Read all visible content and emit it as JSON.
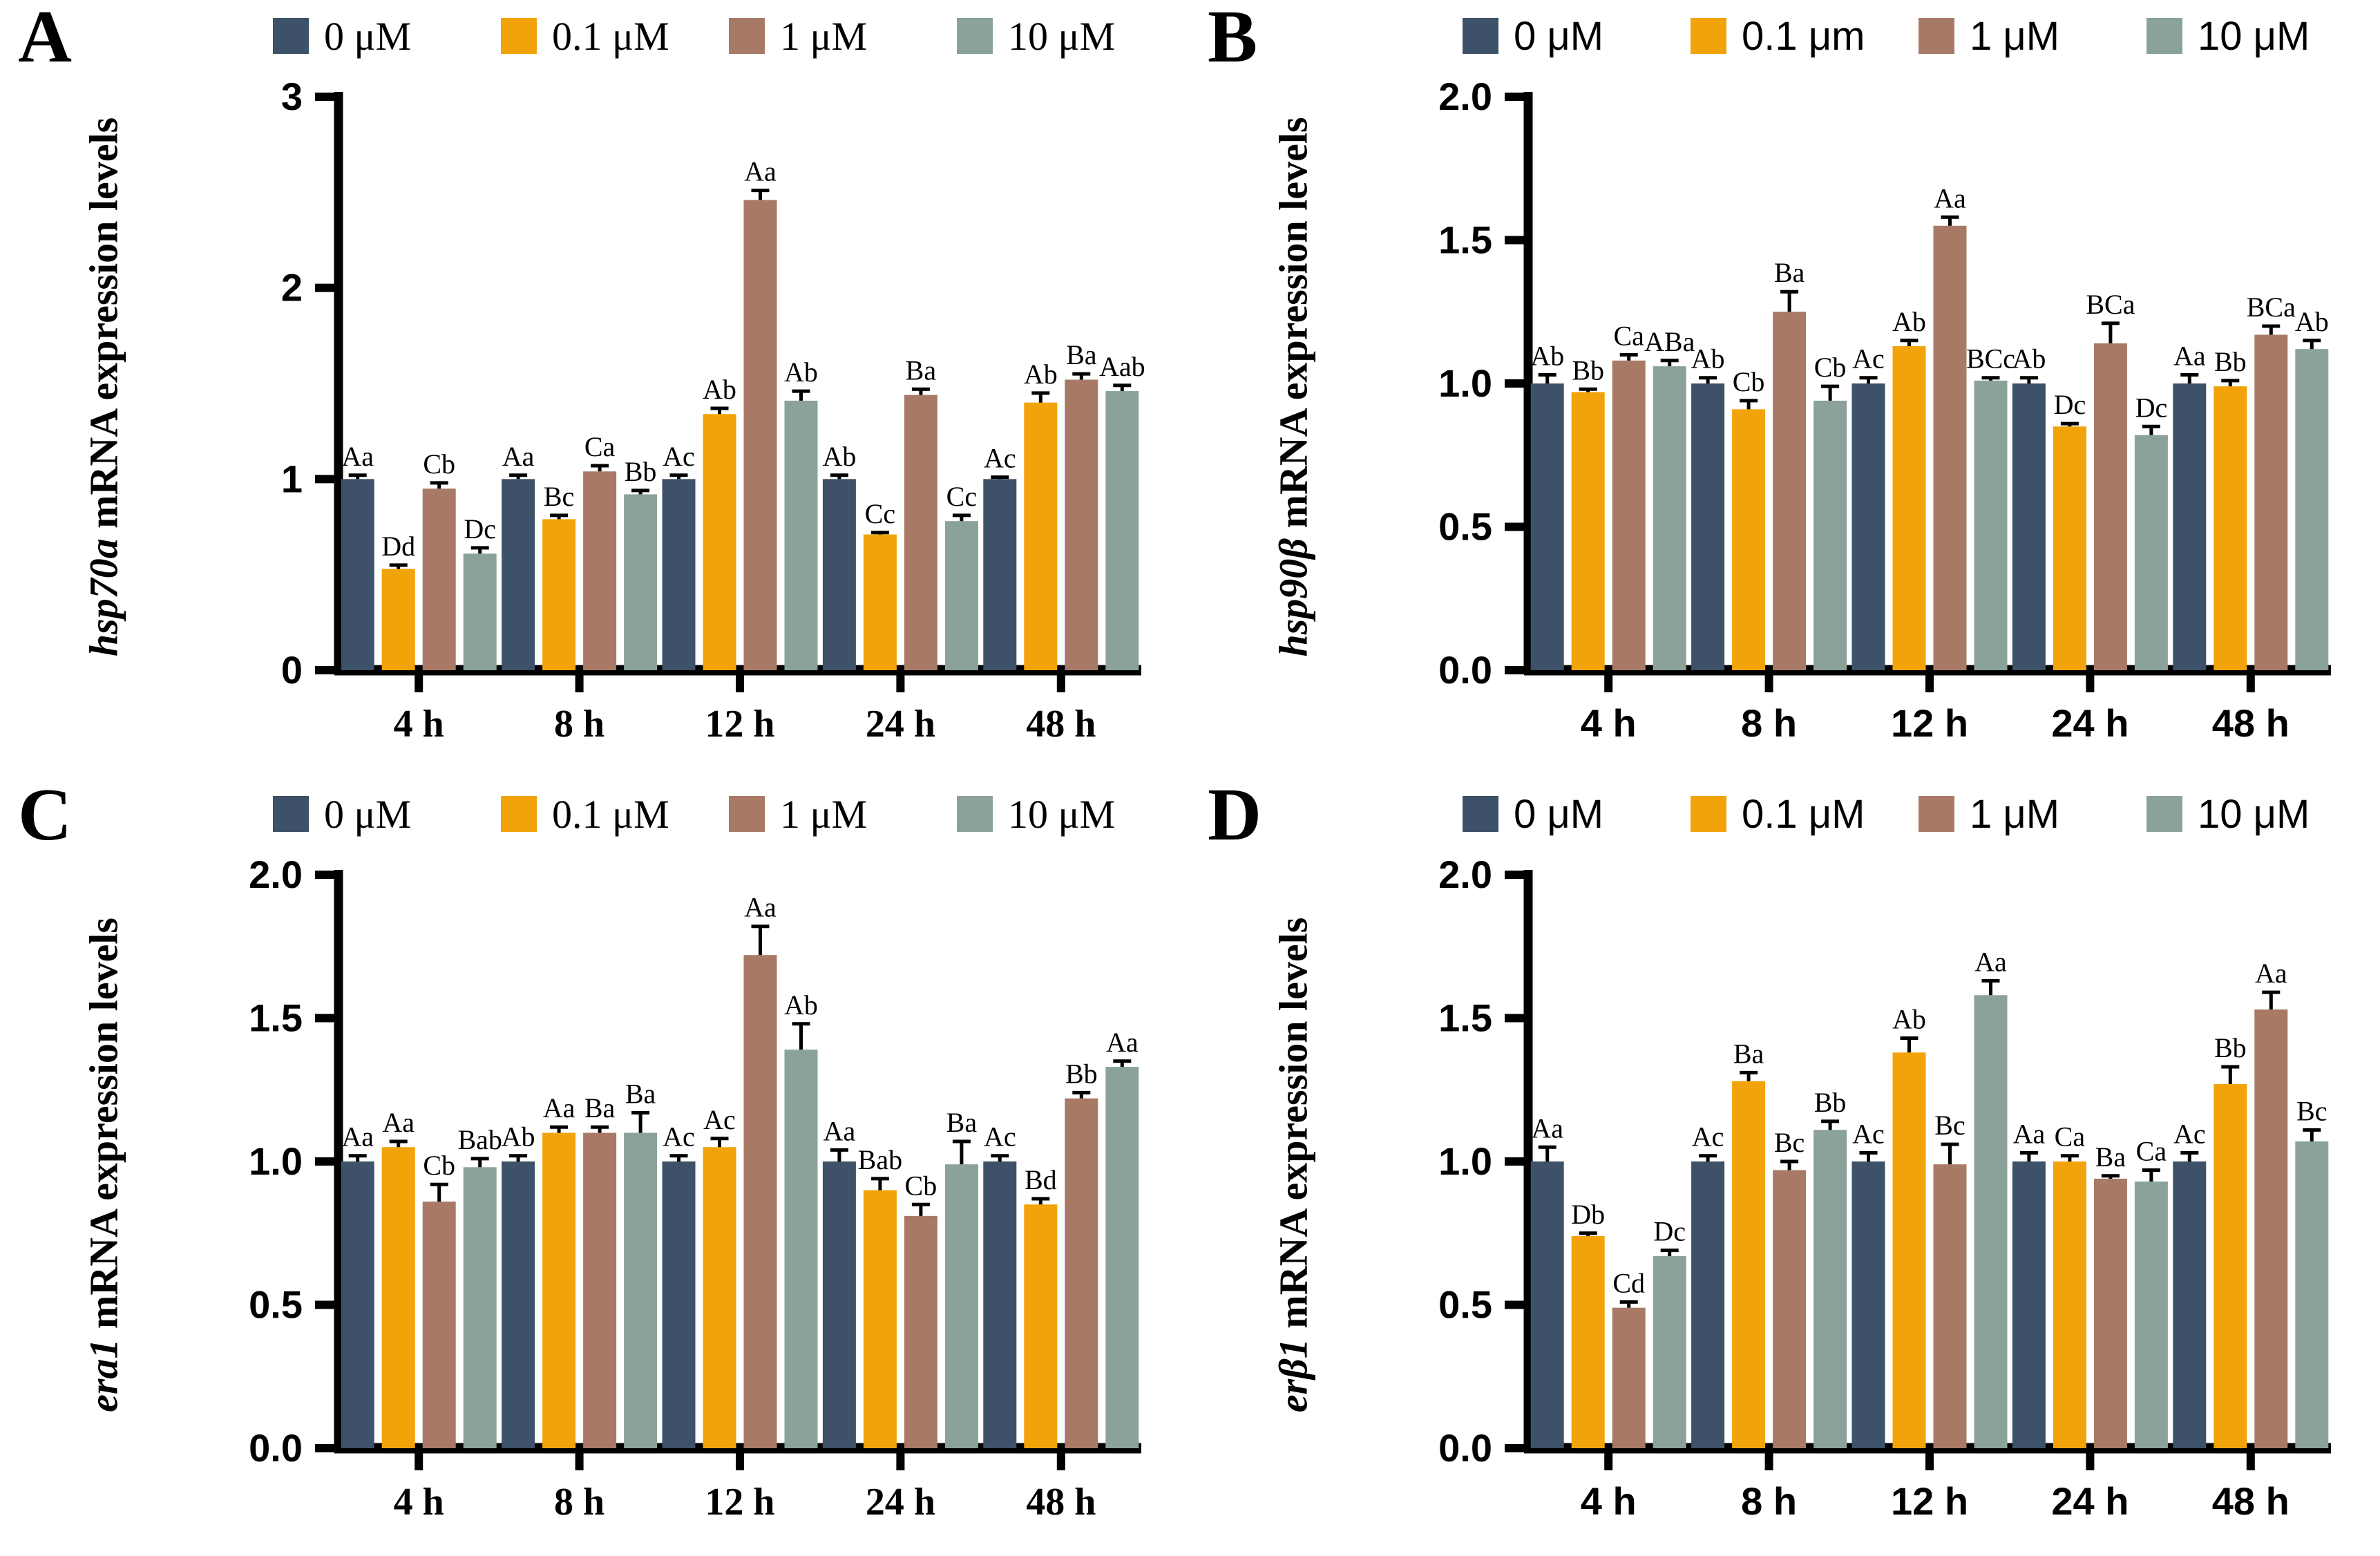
{
  "colors": [
    "#3D5168",
    "#F2A309",
    "#A87A65",
    "#8BA29B"
  ],
  "chart_data": [
    {
      "id": "A",
      "type": "bar",
      "gene": "hsp70a",
      "ylabel_suffix": " mRNA expression levels",
      "axis_font": "serif",
      "grid": false,
      "legend_position": "top",
      "categories": [
        "4 h",
        "8 h",
        "12 h",
        "24 h",
        "48 h"
      ],
      "ylim": [
        0,
        3
      ],
      "yticks": [
        0,
        1,
        2,
        3
      ],
      "ytick_labels": [
        "0",
        "1",
        "2",
        "3"
      ],
      "series": [
        {
          "name": "0 μM",
          "values": [
            1.0,
            1.0,
            1.0,
            1.0,
            1.0
          ],
          "errors": [
            0.02,
            0.02,
            0.02,
            0.02,
            0.01
          ],
          "letters": [
            "Aa",
            "Aa",
            "Ac",
            "Ab",
            "Ac"
          ]
        },
        {
          "name": "0.1 μM",
          "values": [
            0.53,
            0.79,
            1.34,
            0.71,
            1.4
          ],
          "errors": [
            0.02,
            0.02,
            0.03,
            0.01,
            0.05
          ],
          "letters": [
            "Dd",
            "Bc",
            "Ab",
            "Cc",
            "Ab"
          ]
        },
        {
          "name": "1 μM",
          "values": [
            0.95,
            1.04,
            2.46,
            1.44,
            1.52
          ],
          "errors": [
            0.03,
            0.03,
            0.05,
            0.03,
            0.03
          ],
          "letters": [
            "Cb",
            "Ca",
            "Aa",
            "Ba",
            "Ba"
          ]
        },
        {
          "name": "10 μM",
          "values": [
            0.61,
            0.92,
            1.41,
            0.78,
            1.46
          ],
          "errors": [
            0.03,
            0.02,
            0.05,
            0.03,
            0.03
          ],
          "letters": [
            "Dc",
            "Bb",
            "Ab",
            "Cc",
            "Aab"
          ]
        }
      ]
    },
    {
      "id": "B",
      "type": "bar",
      "gene": "hsp90β",
      "ylabel_suffix": " mRNA expression levels",
      "axis_font": "sans",
      "grid": false,
      "legend_position": "top",
      "categories": [
        "4 h",
        "8 h",
        "12 h",
        "24 h",
        "48 h"
      ],
      "ylim": [
        0,
        2
      ],
      "yticks": [
        0,
        0.5,
        1,
        1.5,
        2
      ],
      "ytick_labels": [
        "0.0",
        "0.5",
        "1.0",
        "1.5",
        "2.0"
      ],
      "series": [
        {
          "name": "0 μM",
          "values": [
            1.0,
            1.0,
            1.0,
            1.0,
            1.0
          ],
          "errors": [
            0.03,
            0.02,
            0.02,
            0.02,
            0.03
          ],
          "letters": [
            "Ab",
            "Ab",
            "Ac",
            "Ab",
            "Aa"
          ]
        },
        {
          "name": "0.1 μm",
          "values": [
            0.97,
            0.91,
            1.13,
            0.85,
            0.99
          ],
          "errors": [
            0.01,
            0.03,
            0.02,
            0.01,
            0.02
          ],
          "letters": [
            "Bb",
            "Cb",
            "Ab",
            "Dc",
            "Bb"
          ]
        },
        {
          "name": "1 μM",
          "values": [
            1.08,
            1.25,
            1.55,
            1.14,
            1.17
          ],
          "errors": [
            0.02,
            0.07,
            0.03,
            0.07,
            0.03
          ],
          "letters": [
            "Ca",
            "Ba",
            "Aa",
            "BCa",
            "BCa"
          ]
        },
        {
          "name": "10 μM",
          "values": [
            1.06,
            0.94,
            1.01,
            0.82,
            1.12
          ],
          "errors": [
            0.02,
            0.05,
            0.01,
            0.03,
            0.03
          ],
          "letters": [
            "ABa",
            "Cb",
            "BCc",
            "Dc",
            "Ab"
          ]
        }
      ]
    },
    {
      "id": "C",
      "type": "bar",
      "gene": "era1",
      "ylabel_suffix": " mRNA expression levels",
      "axis_font": "serif",
      "grid": false,
      "legend_position": "top",
      "categories": [
        "4 h",
        "8 h",
        "12 h",
        "24 h",
        "48 h"
      ],
      "ylim": [
        0,
        2
      ],
      "yticks": [
        0,
        0.5,
        1,
        1.5,
        2
      ],
      "ytick_labels": [
        "0.0",
        "0.5",
        "1.0",
        "1.5",
        "2.0"
      ],
      "series": [
        {
          "name": "0 μM",
          "values": [
            1.0,
            1.0,
            1.0,
            1.0,
            1.0
          ],
          "errors": [
            0.02,
            0.02,
            0.02,
            0.04,
            0.02
          ],
          "letters": [
            "Aa",
            "Ab",
            "Ac",
            "Aa",
            "Ac"
          ]
        },
        {
          "name": "0.1 μM",
          "values": [
            1.05,
            1.1,
            1.05,
            0.9,
            0.85
          ],
          "errors": [
            0.02,
            0.02,
            0.03,
            0.04,
            0.02
          ],
          "letters": [
            "Aa",
            "Aa",
            "Ac",
            "Bab",
            "Bd"
          ]
        },
        {
          "name": "1 μM",
          "values": [
            0.86,
            1.1,
            1.72,
            0.81,
            1.22
          ],
          "errors": [
            0.06,
            0.02,
            0.1,
            0.04,
            0.02
          ],
          "letters": [
            "Cb",
            "Ba",
            "Aa",
            "Cb",
            "Bb"
          ]
        },
        {
          "name": "10 μM",
          "values": [
            0.98,
            1.1,
            1.39,
            0.99,
            1.33
          ],
          "errors": [
            0.03,
            0.07,
            0.09,
            0.08,
            0.02
          ],
          "letters": [
            "Bab",
            "Ba",
            "Ab",
            "Ba",
            "Aa"
          ]
        }
      ]
    },
    {
      "id": "D",
      "type": "bar",
      "gene": "erβ1",
      "ylabel_suffix": " mRNA expression levels",
      "axis_font": "sans",
      "grid": false,
      "legend_position": "top",
      "categories": [
        "4 h",
        "8 h",
        "12 h",
        "24 h",
        "48 h"
      ],
      "ylim": [
        0,
        2
      ],
      "yticks": [
        0,
        0.5,
        1,
        1.5,
        2
      ],
      "ytick_labels": [
        "0.0",
        "0.5",
        "1.0",
        "1.5",
        "2.0"
      ],
      "series": [
        {
          "name": "0 μM",
          "values": [
            1.0,
            1.0,
            1.0,
            1.0,
            1.0
          ],
          "errors": [
            0.05,
            0.02,
            0.03,
            0.03,
            0.03
          ],
          "letters": [
            "Aa",
            "Ac",
            "Ac",
            "Aa",
            "Ac"
          ]
        },
        {
          "name": "0.1 μM",
          "values": [
            0.74,
            1.28,
            1.38,
            1.0,
            1.27
          ],
          "errors": [
            0.01,
            0.03,
            0.05,
            0.02,
            0.06
          ],
          "letters": [
            "Db",
            "Ba",
            "Ab",
            "Ca",
            "Bb"
          ]
        },
        {
          "name": "1 μM",
          "values": [
            0.49,
            0.97,
            0.99,
            0.94,
            1.53
          ],
          "errors": [
            0.02,
            0.03,
            0.07,
            0.01,
            0.06
          ],
          "letters": [
            "Cd",
            "Bc",
            "Bc",
            "Ba",
            "Aa"
          ]
        },
        {
          "name": "10 μM",
          "values": [
            0.67,
            1.11,
            1.58,
            0.93,
            1.07
          ],
          "errors": [
            0.02,
            0.03,
            0.05,
            0.04,
            0.04
          ],
          "letters": [
            "Dc",
            "Bb",
            "Aa",
            "Ca",
            "Bc"
          ]
        }
      ]
    }
  ]
}
